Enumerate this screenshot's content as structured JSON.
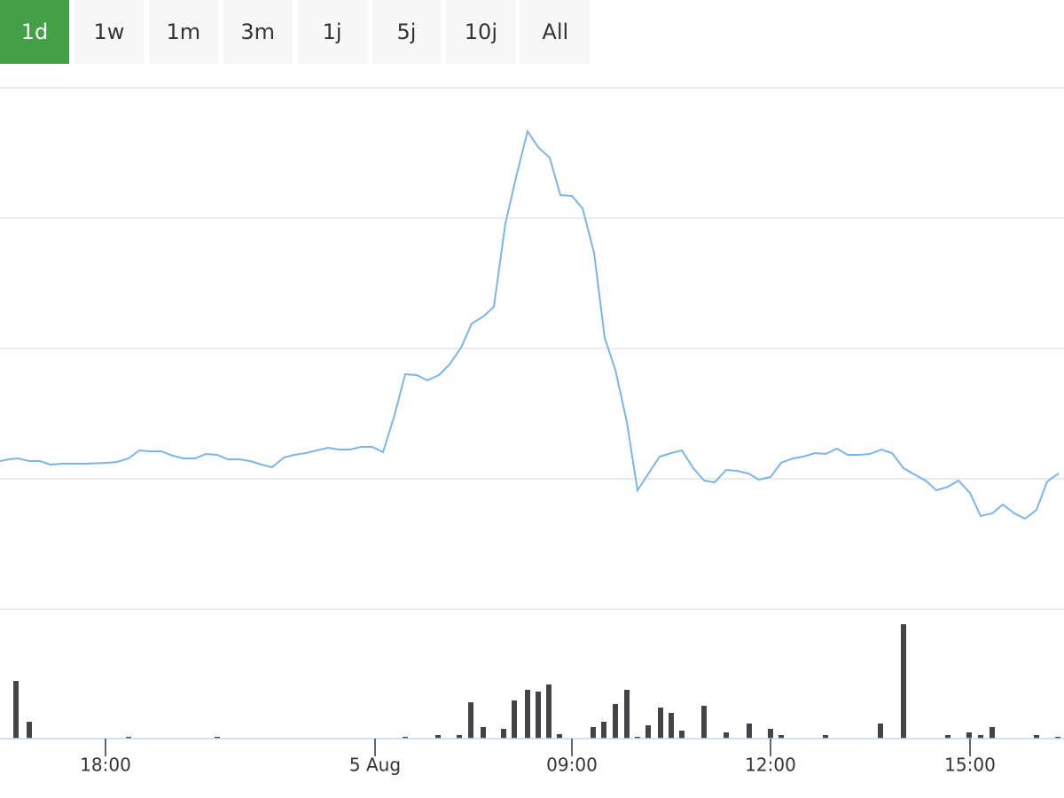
{
  "buttons": [
    {
      "label": "1d",
      "active": true
    },
    {
      "label": "1w",
      "active": false
    },
    {
      "label": "1m",
      "active": false
    },
    {
      "label": "3m",
      "active": false
    },
    {
      "label": "1j",
      "active": false
    },
    {
      "label": "5j",
      "active": false
    },
    {
      "label": "10j",
      "active": false
    },
    {
      "label": "All",
      "active": false
    }
  ],
  "chart_data": [
    {
      "type": "line",
      "color": "#7cb5ec",
      "grid": true,
      "xlim": [
        0,
        1200
      ],
      "ylim": [
        0,
        588
      ],
      "yticks": [
        0,
        147,
        294,
        441,
        588
      ],
      "x": [
        0,
        10,
        20,
        33,
        45,
        57,
        70,
        95,
        120,
        132,
        145,
        157,
        170,
        182,
        195,
        207,
        220,
        232,
        245,
        257,
        270,
        282,
        295,
        307,
        320,
        332,
        345,
        357,
        370,
        382,
        395,
        407,
        420,
        432,
        445,
        457,
        470,
        482,
        495,
        507,
        520,
        532,
        545,
        557,
        570,
        582,
        595,
        607,
        620,
        632,
        645,
        657,
        670,
        682,
        694,
        707,
        719,
        732,
        744,
        757,
        769,
        782,
        794,
        806,
        819,
        831,
        844,
        856,
        869,
        881,
        894,
        906,
        919,
        931,
        944,
        956,
        969,
        981,
        994,
        1006,
        1019,
        1031,
        1044,
        1056,
        1069,
        1081,
        1094,
        1106,
        1119,
        1131,
        1144,
        1156,
        1169,
        1181,
        1194
      ],
      "values": [
        167,
        169,
        170,
        167,
        167,
        163,
        164,
        164,
        165,
        166,
        170,
        179,
        178,
        178,
        173,
        170,
        170,
        175,
        174,
        169,
        169,
        167,
        163,
        160,
        171,
        174,
        176,
        179,
        182,
        180,
        180,
        183,
        183,
        177,
        219,
        265,
        264,
        258,
        264,
        276,
        295,
        322,
        330,
        341,
        435,
        487,
        539,
        521,
        509,
        467,
        466,
        452,
        402,
        306,
        270,
        211,
        134,
        154,
        172,
        176,
        179,
        159,
        145,
        143,
        157,
        156,
        153,
        146,
        149,
        165,
        170,
        172,
        176,
        175,
        181,
        174,
        174,
        175,
        180,
        176,
        159,
        152,
        145,
        134,
        138,
        145,
        131,
        105,
        108,
        118,
        108,
        102,
        112,
        144,
        153
      ]
    },
    {
      "type": "bar",
      "color": "#434348",
      "xlim": [
        0,
        1200
      ],
      "ylim": [
        0,
        146
      ],
      "xticks": [
        {
          "value": 119,
          "label": "18:00"
        },
        {
          "value": 423,
          "label": "5 Aug"
        },
        {
          "value": 645,
          "label": "09:00"
        },
        {
          "value": 869,
          "label": "12:00"
        },
        {
          "value": 1094,
          "label": "15:00"
        }
      ],
      "x": [
        18,
        33,
        145,
        245,
        457,
        494,
        518,
        531,
        545,
        568,
        580,
        595,
        607,
        619,
        631,
        669,
        681,
        694,
        707,
        719,
        731,
        745,
        757,
        769,
        794,
        819,
        845,
        869,
        881,
        931,
        993,
        1019,
        1069,
        1093,
        1106,
        1119,
        1169,
        1193
      ],
      "values": [
        65,
        19,
        2,
        2,
        2,
        4,
        4,
        41,
        13,
        11,
        43,
        55,
        53,
        61,
        5,
        13,
        19,
        39,
        55,
        2,
        15,
        35,
        29,
        9,
        37,
        7,
        17,
        11,
        4,
        4,
        17,
        129,
        4,
        7,
        4,
        13,
        4,
        2
      ]
    }
  ]
}
